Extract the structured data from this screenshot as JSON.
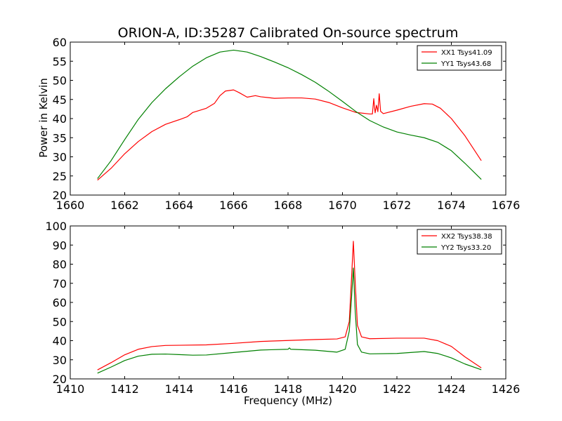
{
  "title": "ORION-A, ID:35287 Calibrated On-source spectrum",
  "ylabel": "Power in Kelvin",
  "xlabel": "Frequency (MHz)",
  "colors": {
    "xx": "#ff0000",
    "yy": "#008000"
  },
  "chart_data": [
    {
      "type": "line",
      "xlim": [
        1660,
        1676
      ],
      "ylim": [
        20,
        60
      ],
      "xticks": [
        1660,
        1662,
        1664,
        1666,
        1668,
        1670,
        1672,
        1674,
        1676
      ],
      "yticks": [
        20,
        25,
        30,
        35,
        40,
        45,
        50,
        55,
        60
      ],
      "legend_position": "top-right",
      "series": [
        {
          "name": "XX1 Tsys41.09",
          "color": "#ff0000",
          "points": [
            [
              1661.0,
              23.9
            ],
            [
              1661.5,
              27.0
            ],
            [
              1662.0,
              30.8
            ],
            [
              1662.5,
              34.0
            ],
            [
              1663.0,
              36.6
            ],
            [
              1663.5,
              38.5
            ],
            [
              1664.0,
              39.7
            ],
            [
              1664.3,
              40.5
            ],
            [
              1664.5,
              41.6
            ],
            [
              1665.0,
              42.7
            ],
            [
              1665.3,
              44.0
            ],
            [
              1665.5,
              46.0
            ],
            [
              1665.7,
              47.2
            ],
            [
              1666.0,
              47.5
            ],
            [
              1666.2,
              46.8
            ],
            [
              1666.5,
              45.6
            ],
            [
              1666.8,
              46.0
            ],
            [
              1667.0,
              45.7
            ],
            [
              1667.5,
              45.3
            ],
            [
              1668.0,
              45.4
            ],
            [
              1668.5,
              45.4
            ],
            [
              1669.0,
              45.1
            ],
            [
              1669.5,
              44.2
            ],
            [
              1670.0,
              42.8
            ],
            [
              1670.5,
              41.6
            ],
            [
              1671.0,
              41.2
            ],
            [
              1671.1,
              41.2
            ],
            [
              1671.15,
              45.2
            ],
            [
              1671.2,
              41.5
            ],
            [
              1671.25,
              43.5
            ],
            [
              1671.3,
              41.8
            ],
            [
              1671.35,
              46.5
            ],
            [
              1671.4,
              41.9
            ],
            [
              1671.5,
              41.3
            ],
            [
              1672.0,
              42.2
            ],
            [
              1672.5,
              43.2
            ],
            [
              1673.0,
              43.9
            ],
            [
              1673.3,
              43.8
            ],
            [
              1673.6,
              42.7
            ],
            [
              1674.0,
              40.0
            ],
            [
              1674.5,
              35.5
            ],
            [
              1675.1,
              29.0
            ]
          ]
        },
        {
          "name": "YY1 Tsys43.68",
          "color": "#008000",
          "points": [
            [
              1661.0,
              24.3
            ],
            [
              1661.5,
              29.0
            ],
            [
              1662.0,
              34.5
            ],
            [
              1662.5,
              39.8
            ],
            [
              1663.0,
              44.2
            ],
            [
              1663.5,
              47.8
            ],
            [
              1664.0,
              50.9
            ],
            [
              1664.5,
              53.7
            ],
            [
              1665.0,
              55.9
            ],
            [
              1665.5,
              57.4
            ],
            [
              1666.0,
              57.9
            ],
            [
              1666.5,
              57.4
            ],
            [
              1667.0,
              56.2
            ],
            [
              1667.5,
              54.8
            ],
            [
              1668.0,
              53.3
            ],
            [
              1668.5,
              51.5
            ],
            [
              1669.0,
              49.5
            ],
            [
              1669.5,
              47.1
            ],
            [
              1670.0,
              44.5
            ],
            [
              1670.5,
              41.8
            ],
            [
              1671.0,
              39.5
            ],
            [
              1671.5,
              37.8
            ],
            [
              1672.0,
              36.5
            ],
            [
              1672.5,
              35.7
            ],
            [
              1673.0,
              35.0
            ],
            [
              1673.5,
              33.8
            ],
            [
              1674.0,
              31.6
            ],
            [
              1674.5,
              28.3
            ],
            [
              1675.1,
              24.1
            ]
          ]
        }
      ]
    },
    {
      "type": "line",
      "xlim": [
        1410,
        1426
      ],
      "ylim": [
        20,
        100
      ],
      "xticks": [
        1410,
        1412,
        1414,
        1416,
        1418,
        1420,
        1422,
        1424,
        1426
      ],
      "yticks": [
        20,
        30,
        40,
        50,
        60,
        70,
        80,
        90,
        100
      ],
      "legend_position": "top-right",
      "series": [
        {
          "name": "XX2 Tsys38.38",
          "color": "#ff0000",
          "points": [
            [
              1411.0,
              24.7
            ],
            [
              1411.5,
              28.5
            ],
            [
              1412.0,
              32.6
            ],
            [
              1412.5,
              35.5
            ],
            [
              1413.0,
              36.9
            ],
            [
              1413.5,
              37.5
            ],
            [
              1414.0,
              37.6
            ],
            [
              1415.0,
              37.8
            ],
            [
              1416.0,
              38.6
            ],
            [
              1417.0,
              39.6
            ],
            [
              1418.0,
              40.1
            ],
            [
              1419.0,
              40.6
            ],
            [
              1419.8,
              40.9
            ],
            [
              1420.1,
              42.0
            ],
            [
              1420.25,
              50.0
            ],
            [
              1420.33,
              72.0
            ],
            [
              1420.4,
              92.0
            ],
            [
              1420.47,
              70.0
            ],
            [
              1420.55,
              48.0
            ],
            [
              1420.7,
              42.0
            ],
            [
              1421.0,
              41.0
            ],
            [
              1422.0,
              41.3
            ],
            [
              1423.0,
              41.3
            ],
            [
              1423.5,
              40.0
            ],
            [
              1424.0,
              37.0
            ],
            [
              1424.5,
              31.5
            ],
            [
              1425.1,
              25.8
            ]
          ]
        },
        {
          "name": "YY2 Tsys33.20",
          "color": "#008000",
          "points": [
            [
              1411.0,
              23.0
            ],
            [
              1411.5,
              26.2
            ],
            [
              1412.0,
              29.6
            ],
            [
              1412.5,
              31.9
            ],
            [
              1413.0,
              32.9
            ],
            [
              1413.5,
              33.0
            ],
            [
              1414.0,
              32.7
            ],
            [
              1414.5,
              32.4
            ],
            [
              1415.0,
              32.5
            ],
            [
              1416.0,
              33.8
            ],
            [
              1417.0,
              35.1
            ],
            [
              1418.0,
              35.5
            ],
            [
              1418.05,
              36.2
            ],
            [
              1418.1,
              35.5
            ],
            [
              1419.0,
              35.0
            ],
            [
              1419.8,
              34.0
            ],
            [
              1420.1,
              35.5
            ],
            [
              1420.25,
              45.0
            ],
            [
              1420.33,
              62.0
            ],
            [
              1420.4,
              78.0
            ],
            [
              1420.47,
              55.0
            ],
            [
              1420.55,
              38.0
            ],
            [
              1420.7,
              34.0
            ],
            [
              1421.0,
              33.1
            ],
            [
              1422.0,
              33.3
            ],
            [
              1423.0,
              34.3
            ],
            [
              1423.5,
              33.3
            ],
            [
              1424.0,
              31.0
            ],
            [
              1424.5,
              27.8
            ],
            [
              1425.1,
              24.8
            ]
          ]
        }
      ]
    }
  ]
}
